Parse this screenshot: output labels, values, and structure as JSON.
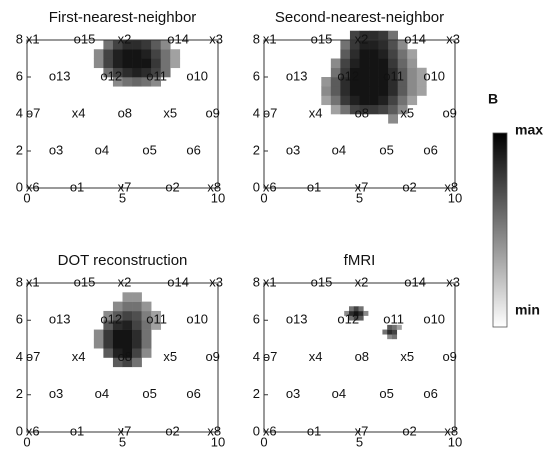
{
  "chart_data": [
    {
      "type": "heatmap",
      "title": "First-nearest-neighbor",
      "xlim": [
        0,
        10
      ],
      "ylim": [
        0,
        8
      ],
      "xticks": [
        0,
        5,
        10
      ],
      "yticks": [
        0,
        2,
        4,
        6,
        8
      ],
      "heatmap": {
        "x0": 3.5,
        "y0": 5.5,
        "cell": 0.5,
        "z": [
          [
            null,
            null,
            0.5,
            0.6,
            0.65,
            0.6,
            0.5,
            null,
            null
          ],
          [
            null,
            0.6,
            0.8,
            0.9,
            0.95,
            0.9,
            0.8,
            0.6,
            null
          ],
          [
            0.5,
            0.8,
            0.95,
            1,
            1,
            1,
            0.85,
            0.6,
            0.4
          ],
          [
            0.5,
            0.8,
            0.95,
            1,
            1,
            0.95,
            0.8,
            0.6,
            0.4
          ],
          [
            null,
            0.6,
            0.8,
            0.9,
            0.9,
            0.85,
            0.7,
            0.5,
            null
          ]
        ]
      },
      "points": [
        {
          "label": "x1",
          "x": 0.1,
          "y": 8
        },
        {
          "label": "o15",
          "x": 2.6,
          "y": 8
        },
        {
          "label": "x2",
          "x": 4.9,
          "y": 8
        },
        {
          "label": "o14",
          "x": 7.5,
          "y": 8
        },
        {
          "label": "x3",
          "x": 9.7,
          "y": 8
        },
        {
          "label": "o13",
          "x": 1.3,
          "y": 6
        },
        {
          "label": "o12",
          "x": 4,
          "y": 6
        },
        {
          "label": "o11",
          "x": 6.4,
          "y": 6
        },
        {
          "label": "o10",
          "x": 8.5,
          "y": 6
        },
        {
          "label": "o7",
          "x": 0.1,
          "y": 4
        },
        {
          "label": "x4",
          "x": 2.5,
          "y": 4
        },
        {
          "label": "o8",
          "x": 4.9,
          "y": 4
        },
        {
          "label": "x5",
          "x": 7.3,
          "y": 4
        },
        {
          "label": "o9",
          "x": 9.5,
          "y": 4
        },
        {
          "label": "o3",
          "x": 1.3,
          "y": 2
        },
        {
          "label": "o4",
          "x": 3.7,
          "y": 2
        },
        {
          "label": "o5",
          "x": 6.2,
          "y": 2
        },
        {
          "label": "o6",
          "x": 8.5,
          "y": 2
        },
        {
          "label": "x6",
          "x": 0.1,
          "y": 0
        },
        {
          "label": "o1",
          "x": 2.4,
          "y": 0
        },
        {
          "label": "x7",
          "x": 4.9,
          "y": 0
        },
        {
          "label": "o2",
          "x": 7.4,
          "y": 0
        },
        {
          "label": "x8",
          "x": 9.6,
          "y": 0
        }
      ]
    },
    {
      "type": "heatmap",
      "title": "Second-nearest-neighbor",
      "xlim": [
        0,
        10
      ],
      "ylim": [
        0,
        8
      ],
      "xticks": [
        0,
        5,
        10
      ],
      "yticks": [
        0,
        2,
        4,
        6,
        8
      ],
      "heatmap": {
        "x0": 3,
        "y0": 3.5,
        "cell": 0.5,
        "z": [
          [
            null,
            null,
            null,
            null,
            null,
            null,
            null,
            0.5,
            null,
            null,
            null
          ],
          [
            null,
            0.4,
            0.6,
            0.8,
            0.85,
            0.85,
            0.8,
            0.7,
            0.5,
            null,
            null
          ],
          [
            0.4,
            0.6,
            0.85,
            0.95,
            1,
            1,
            0.95,
            0.8,
            0.6,
            0.4,
            null
          ],
          [
            0.5,
            0.7,
            0.9,
            1,
            1,
            1,
            1,
            0.9,
            0.7,
            0.5,
            0.4
          ],
          [
            0.45,
            0.7,
            0.9,
            1,
            1,
            1,
            1,
            0.9,
            0.7,
            0.5,
            0.4
          ],
          [
            null,
            0.6,
            0.85,
            1,
            1,
            1,
            1,
            0.9,
            0.7,
            0.5,
            0.4
          ],
          [
            null,
            0.5,
            0.8,
            0.95,
            1,
            1,
            1,
            0.85,
            0.65,
            0.45,
            null
          ],
          [
            null,
            null,
            0.7,
            0.9,
            1,
            1,
            0.95,
            0.8,
            0.6,
            0.4,
            null
          ],
          [
            null,
            null,
            0.6,
            0.85,
            0.95,
            0.95,
            0.9,
            0.75,
            0.5,
            null,
            null
          ],
          [
            null,
            null,
            null,
            0.8,
            0.9,
            0.9,
            0.85,
            0.6,
            null,
            null,
            null
          ]
        ]
      },
      "points": [
        {
          "label": "x1",
          "x": 0.1,
          "y": 8
        },
        {
          "label": "o15",
          "x": 2.6,
          "y": 8
        },
        {
          "label": "x2",
          "x": 4.9,
          "y": 8
        },
        {
          "label": "o14",
          "x": 7.5,
          "y": 8
        },
        {
          "label": "x3",
          "x": 9.7,
          "y": 8
        },
        {
          "label": "o13",
          "x": 1.3,
          "y": 6
        },
        {
          "label": "o12",
          "x": 4,
          "y": 6
        },
        {
          "label": "o11",
          "x": 6.4,
          "y": 6
        },
        {
          "label": "o10",
          "x": 8.5,
          "y": 6
        },
        {
          "label": "o7",
          "x": 0.1,
          "y": 4
        },
        {
          "label": "x4",
          "x": 2.5,
          "y": 4
        },
        {
          "label": "o8",
          "x": 4.9,
          "y": 4
        },
        {
          "label": "x5",
          "x": 7.3,
          "y": 4
        },
        {
          "label": "o9",
          "x": 9.5,
          "y": 4
        },
        {
          "label": "o3",
          "x": 1.3,
          "y": 2
        },
        {
          "label": "o4",
          "x": 3.7,
          "y": 2
        },
        {
          "label": "o5",
          "x": 6.2,
          "y": 2
        },
        {
          "label": "o6",
          "x": 8.5,
          "y": 2
        },
        {
          "label": "x6",
          "x": 0.1,
          "y": 0
        },
        {
          "label": "o1",
          "x": 2.4,
          "y": 0
        },
        {
          "label": "x7",
          "x": 4.9,
          "y": 0
        },
        {
          "label": "o2",
          "x": 7.4,
          "y": 0
        },
        {
          "label": "x8",
          "x": 9.6,
          "y": 0
        }
      ]
    },
    {
      "type": "heatmap",
      "title": "DOT reconstruction",
      "xlim": [
        0,
        10
      ],
      "ylim": [
        0,
        8
      ],
      "xticks": [
        0,
        5,
        10
      ],
      "yticks": [
        0,
        2,
        4,
        6,
        8
      ],
      "heatmap": {
        "x0": 3.5,
        "y0": 3.5,
        "cell": 0.5,
        "z": [
          [
            null,
            null,
            0.7,
            0.8,
            0.6,
            null,
            null
          ],
          [
            null,
            0.7,
            0.95,
            1,
            0.8,
            0.5,
            null
          ],
          [
            0.5,
            0.85,
            1,
            1,
            0.9,
            0.6,
            null
          ],
          [
            0.5,
            0.85,
            1,
            1,
            0.9,
            0.6,
            null
          ],
          [
            null,
            0.7,
            0.9,
            0.95,
            0.8,
            0.6,
            0.4
          ],
          [
            null,
            0.5,
            0.7,
            0.8,
            0.75,
            0.55,
            0.4
          ],
          [
            null,
            null,
            0.5,
            0.6,
            0.6,
            0.45,
            null
          ],
          [
            null,
            null,
            null,
            0.45,
            0.45,
            null,
            null
          ]
        ]
      },
      "points": [
        {
          "label": "x1",
          "x": 0.1,
          "y": 8
        },
        {
          "label": "o15",
          "x": 2.6,
          "y": 8
        },
        {
          "label": "x2",
          "x": 4.9,
          "y": 8
        },
        {
          "label": "o14",
          "x": 7.5,
          "y": 8
        },
        {
          "label": "x3",
          "x": 9.7,
          "y": 8
        },
        {
          "label": "o13",
          "x": 1.3,
          "y": 6
        },
        {
          "label": "o12",
          "x": 4,
          "y": 6
        },
        {
          "label": "o11",
          "x": 6.4,
          "y": 6
        },
        {
          "label": "o10",
          "x": 8.5,
          "y": 6
        },
        {
          "label": "o7",
          "x": 0.1,
          "y": 4
        },
        {
          "label": "x4",
          "x": 2.5,
          "y": 4
        },
        {
          "label": "o8",
          "x": 4.9,
          "y": 4
        },
        {
          "label": "x5",
          "x": 7.3,
          "y": 4
        },
        {
          "label": "o9",
          "x": 9.5,
          "y": 4
        },
        {
          "label": "o3",
          "x": 1.3,
          "y": 2
        },
        {
          "label": "o4",
          "x": 3.7,
          "y": 2
        },
        {
          "label": "o5",
          "x": 6.2,
          "y": 2
        },
        {
          "label": "o6",
          "x": 8.5,
          "y": 2
        },
        {
          "label": "x6",
          "x": 0.1,
          "y": 0
        },
        {
          "label": "o1",
          "x": 2.4,
          "y": 0
        },
        {
          "label": "x7",
          "x": 4.9,
          "y": 0
        },
        {
          "label": "o2",
          "x": 7.4,
          "y": 0
        },
        {
          "label": "x8",
          "x": 9.6,
          "y": 0
        }
      ]
    },
    {
      "type": "heatmap",
      "title": "fMRI",
      "xlim": [
        0,
        10
      ],
      "ylim": [
        0,
        8
      ],
      "xticks": [
        0,
        5,
        10
      ],
      "yticks": [
        0,
        2,
        4,
        6,
        8
      ],
      "heatmap": {
        "x0": 4.2,
        "y0": 5,
        "cell": 0.25,
        "z": [
          [
            null,
            null,
            null,
            null,
            null,
            null,
            null,
            null,
            null,
            0.5,
            0.6,
            null
          ],
          [
            null,
            null,
            null,
            null,
            null,
            null,
            null,
            null,
            0.6,
            0.9,
            0.8,
            null
          ],
          [
            null,
            null,
            null,
            null,
            null,
            null,
            null,
            null,
            null,
            0.7,
            0.6,
            0.4
          ],
          [
            null,
            null,
            null,
            null,
            null,
            null,
            null,
            null,
            null,
            null,
            null,
            null
          ],
          [
            null,
            0.6,
            0.8,
            0.7,
            null,
            null,
            null,
            null,
            null,
            null,
            null,
            null
          ],
          [
            0.5,
            0.9,
            1,
            0.9,
            0.5,
            null,
            null,
            null,
            null,
            null,
            null,
            null
          ],
          [
            null,
            0.6,
            0.8,
            0.6,
            null,
            null,
            null,
            null,
            null,
            null,
            null,
            null
          ]
        ]
      },
      "points": [
        {
          "label": "x1",
          "x": 0.1,
          "y": 8
        },
        {
          "label": "o15",
          "x": 2.6,
          "y": 8
        },
        {
          "label": "x2",
          "x": 4.9,
          "y": 8
        },
        {
          "label": "o14",
          "x": 7.5,
          "y": 8
        },
        {
          "label": "x3",
          "x": 9.7,
          "y": 8
        },
        {
          "label": "o13",
          "x": 1.3,
          "y": 6
        },
        {
          "label": "o12",
          "x": 4,
          "y": 6
        },
        {
          "label": "o11",
          "x": 6.4,
          "y": 6
        },
        {
          "label": "o10",
          "x": 8.5,
          "y": 6
        },
        {
          "label": "o7",
          "x": 0.1,
          "y": 4
        },
        {
          "label": "x4",
          "x": 2.5,
          "y": 4
        },
        {
          "label": "o8",
          "x": 4.9,
          "y": 4
        },
        {
          "label": "x5",
          "x": 7.3,
          "y": 4
        },
        {
          "label": "o9",
          "x": 9.5,
          "y": 4
        },
        {
          "label": "o3",
          "x": 1.3,
          "y": 2
        },
        {
          "label": "o4",
          "x": 3.7,
          "y": 2
        },
        {
          "label": "o5",
          "x": 6.2,
          "y": 2
        },
        {
          "label": "o6",
          "x": 8.5,
          "y": 2
        },
        {
          "label": "x6",
          "x": 0.1,
          "y": 0
        },
        {
          "label": "o1",
          "x": 2.4,
          "y": 0
        },
        {
          "label": "x7",
          "x": 4.9,
          "y": 0
        },
        {
          "label": "o2",
          "x": 7.4,
          "y": 0
        },
        {
          "label": "x8",
          "x": 9.6,
          "y": 0
        }
      ]
    }
  ],
  "colorbar": {
    "label": "B",
    "max_label": "max",
    "min_label": "min"
  }
}
